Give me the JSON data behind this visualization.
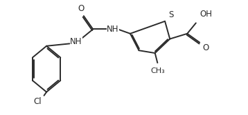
{
  "background": "#ffffff",
  "line_color": "#2a2a2a",
  "line_width": 1.4,
  "font_size": 8.5,
  "figsize": [
    3.58,
    1.67
  ],
  "dpi": 100,
  "xlim": [
    -0.2,
    3.8
  ],
  "ylim": [
    -0.1,
    1.2
  ]
}
